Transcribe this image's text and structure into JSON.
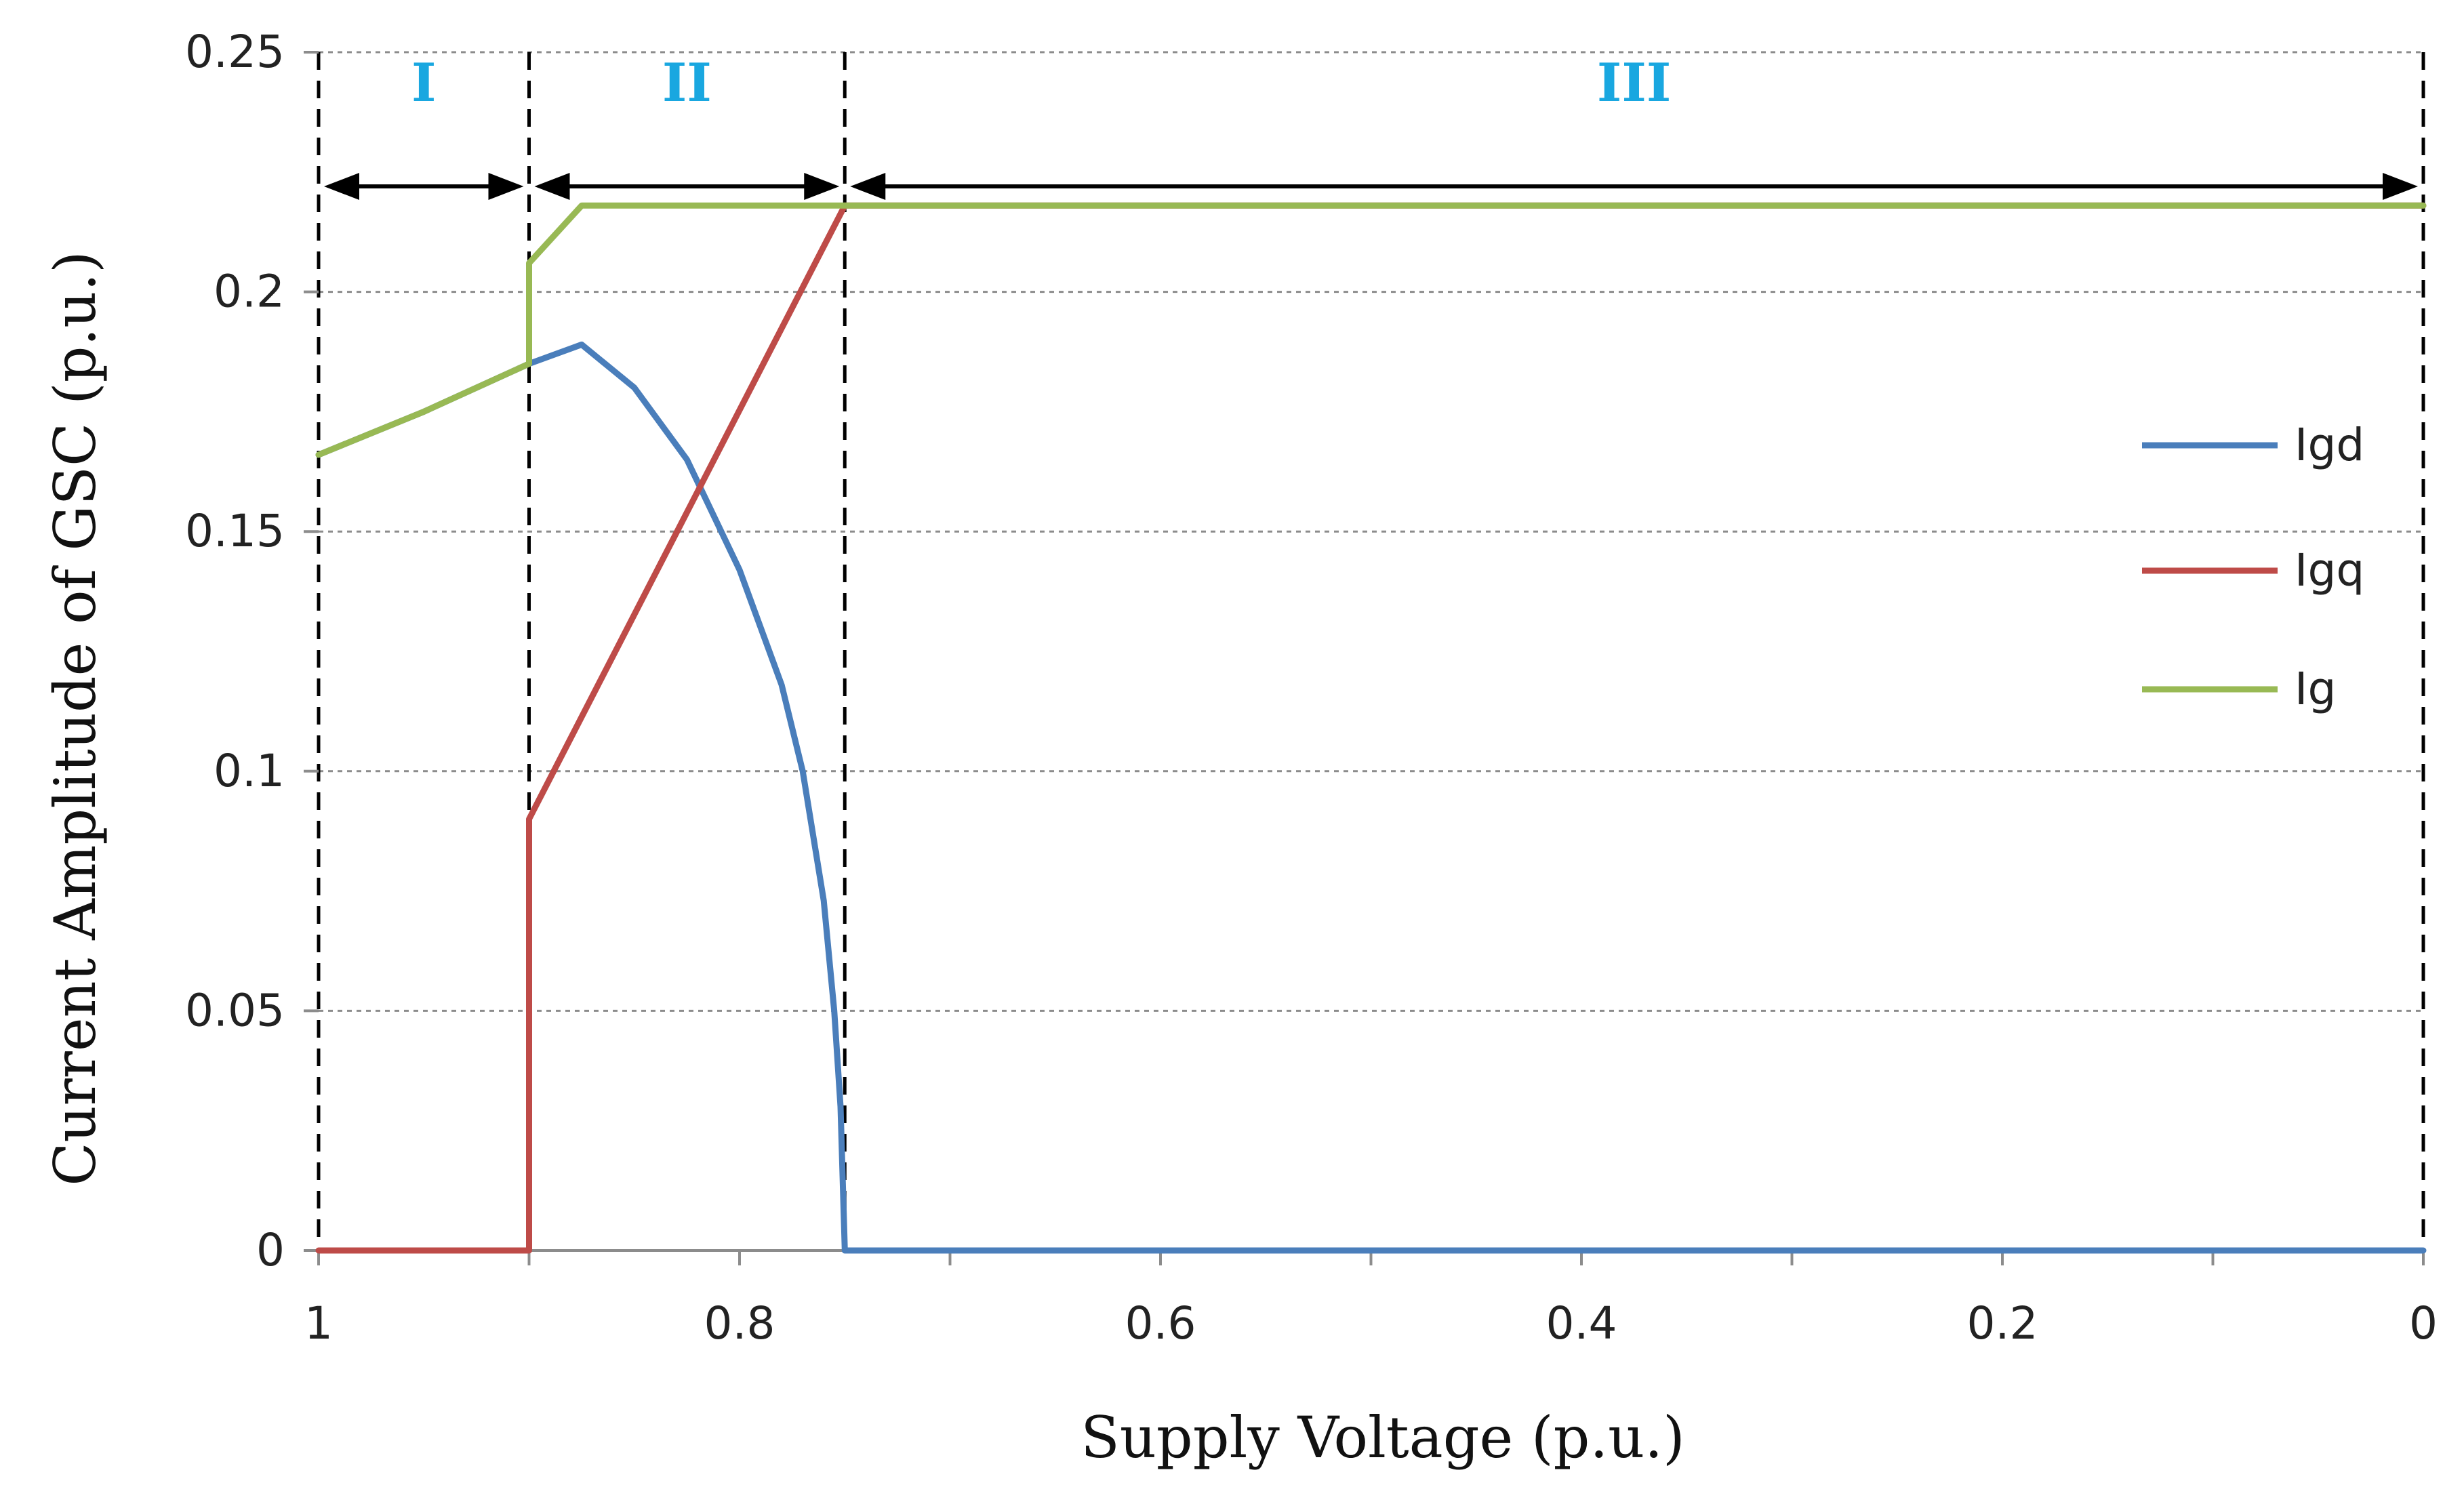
{
  "chart_data": {
    "type": "line",
    "title": "",
    "xlabel": "Supply Voltage (p.u.)",
    "ylabel": "Current Amplitude of GSC (p.u.)",
    "xlim": [
      1,
      0
    ],
    "ylim": [
      0,
      0.25
    ],
    "xticks": [
      {
        "value": 1,
        "label": "1"
      },
      {
        "value": 0.8,
        "label": "0.8"
      },
      {
        "value": 0.6,
        "label": "0.6"
      },
      {
        "value": 0.4,
        "label": "0.4"
      },
      {
        "value": 0.2,
        "label": "0.2"
      },
      {
        "value": 0,
        "label": "0"
      }
    ],
    "yticks": [
      {
        "value": 0,
        "label": "0"
      },
      {
        "value": 0.05,
        "label": "0.05"
      },
      {
        "value": 0.1,
        "label": "0.1"
      },
      {
        "value": 0.15,
        "label": "0.15"
      },
      {
        "value": 0.2,
        "label": "0.2"
      },
      {
        "value": 0.25,
        "label": "0.25"
      }
    ],
    "grid": "horizontal dashed",
    "legend_position": "right",
    "series": [
      {
        "name": "Igd",
        "color": "#4a7ebb",
        "x": [
          1,
          0.95,
          0.9,
          0.875,
          0.85,
          0.825,
          0.8,
          0.78,
          0.77,
          0.76,
          0.755,
          0.752,
          0.75,
          0
        ],
        "y": [
          0.166,
          0.175,
          0.185,
          0.189,
          0.18,
          0.165,
          0.142,
          0.118,
          0.1,
          0.073,
          0.05,
          0.03,
          0,
          0
        ]
      },
      {
        "name": "Igq",
        "color": "#be4b48",
        "x": [
          1,
          0.9,
          0.9,
          0.75,
          0
        ],
        "y": [
          0,
          0,
          0.09,
          0.218,
          0.218
        ]
      },
      {
        "name": "Ig",
        "color": "#98b954",
        "x": [
          1,
          0.95,
          0.9,
          0.9,
          0.875,
          0.75,
          0
        ],
        "y": [
          0.166,
          0.175,
          0.185,
          0.206,
          0.218,
          0.218,
          0.218
        ]
      }
    ],
    "regions": [
      {
        "label": "I",
        "from": 1,
        "to": 0.9
      },
      {
        "label": "II",
        "from": 0.9,
        "to": 0.75
      },
      {
        "label": "III",
        "from": 0.75,
        "to": 0
      }
    ]
  }
}
